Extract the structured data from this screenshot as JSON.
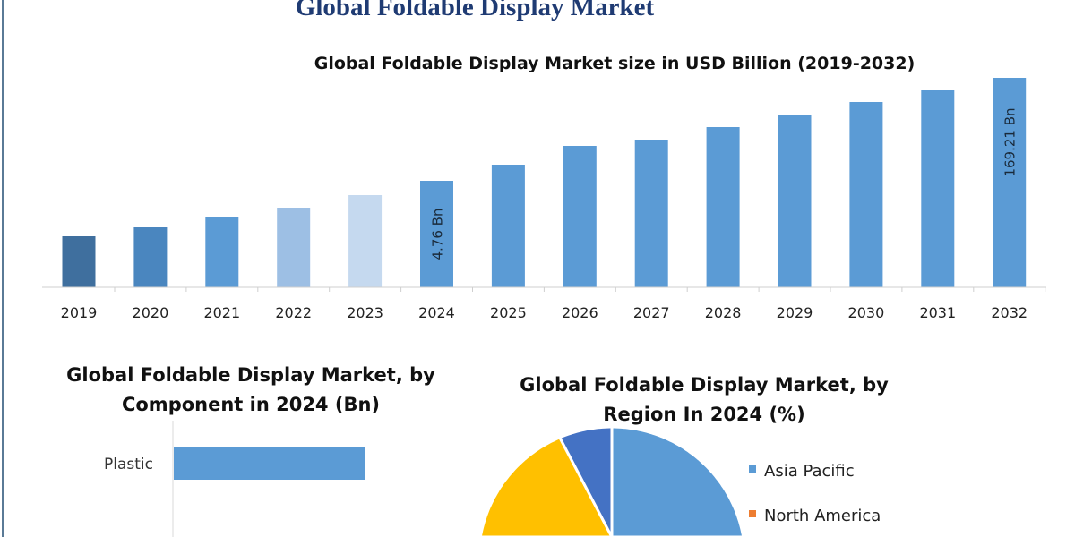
{
  "title": "Global Foldable Display Market",
  "chart_data": [
    {
      "type": "bar",
      "title": "Global Foldable Display Market size in USD Billion (2019-2032)",
      "categories": [
        "2019",
        "2020",
        "2021",
        "2022",
        "2023",
        "2024",
        "2025",
        "2026",
        "2027",
        "2028",
        "2029",
        "2030",
        "2031",
        "2032"
      ],
      "data_labels": {
        "2024": "4.76 Bn",
        "2032": "169.21 Bn"
      },
      "values": [
        null,
        null,
        null,
        null,
        null,
        4.76,
        null,
        null,
        null,
        null,
        null,
        null,
        null,
        169.21
      ],
      "colors": [
        "#3f6f9e",
        "#4a86bf",
        "#5b9bd5",
        "#9dbfe4",
        "#c5d9ef",
        "#5b9bd5",
        "#5b9bd5",
        "#5b9bd5",
        "#5b9bd5",
        "#5b9bd5",
        "#5b9bd5",
        "#5b9bd5",
        "#5b9bd5",
        "#5b9bd5"
      ],
      "grid": false
    },
    {
      "type": "bar",
      "orientation": "horizontal",
      "title_line1": "Global Foldable Display Market, by",
      "title_line2": "Component in 2024 (Bn)",
      "categories": [
        "Plastic"
      ],
      "color": "#5b9bd5"
    },
    {
      "type": "pie",
      "title_line1": "Global Foldable Display Market, by",
      "title_line2": "Region In 2024 (%)",
      "legend": [
        {
          "name": "Asia Pacific",
          "color": "#5b9bd5"
        },
        {
          "name": "North America",
          "color": "#ed7d31"
        }
      ],
      "slice_colors": [
        "#5b9bd5",
        "#a5a5a5",
        "#ffc000",
        "#4472c4"
      ],
      "legend_position": "right"
    }
  ]
}
